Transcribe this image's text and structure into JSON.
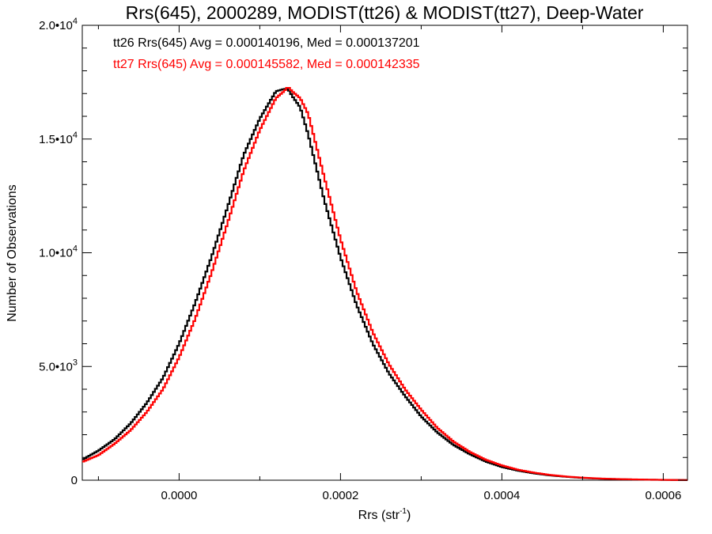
{
  "chart_data": {
    "type": "line",
    "title": "Rrs(645), 2000289, MODIST(tt26) & MODIST(tt27), Deep-Water",
    "xlabel": "Rrs (str",
    "xlabel_sup": "-1",
    "xlabel_end": ")",
    "ylabel": "Number of Observations",
    "xlim": [
      -0.00012,
      0.00063
    ],
    "ylim": [
      0,
      20000
    ],
    "grid": false,
    "x_ticks": [
      {
        "value": 0.0,
        "label": "0.0000"
      },
      {
        "value": 0.0002,
        "label": "0.0002"
      },
      {
        "value": 0.0004,
        "label": "0.0004"
      },
      {
        "value": 0.0006,
        "label": "0.0006"
      }
    ],
    "y_ticks": [
      {
        "value": 0,
        "base": "0",
        "exp": ""
      },
      {
        "value": 5000,
        "base": "5.0•10",
        "exp": "3"
      },
      {
        "value": 10000,
        "base": "1.0•10",
        "exp": "4"
      },
      {
        "value": 15000,
        "base": "1.5•10",
        "exp": "4"
      },
      {
        "value": 20000,
        "base": "2.0•10",
        "exp": "4"
      }
    ],
    "annotations": [
      {
        "text": "tt26 Rrs(645) Avg = 0.000140196, Med = 0.000137201",
        "color": "#000000"
      },
      {
        "text": "tt27 Rrs(645) Avg = 0.000145582, Med = 0.000142335",
        "color": "#ff0000"
      }
    ],
    "series": [
      {
        "color": "#000000",
        "x": [
          -0.00012,
          -0.0001,
          -8e-05,
          -6e-05,
          -4e-05,
          -2e-05,
          0.0,
          2e-05,
          4e-05,
          6e-05,
          8e-05,
          0.0001,
          0.00011,
          0.00012,
          0.00013,
          0.000135,
          0.00014,
          0.00015,
          0.00016,
          0.00018,
          0.0002,
          0.00022,
          0.00024,
          0.00026,
          0.00028,
          0.0003,
          0.00032,
          0.00034,
          0.00036,
          0.00038,
          0.0004,
          0.00042,
          0.00044,
          0.00046,
          0.00048,
          0.0005,
          0.00052,
          0.00055,
          0.00058,
          0.00061,
          0.00063
        ],
        "y": [
          900,
          1300,
          1800,
          2500,
          3400,
          4500,
          6000,
          7800,
          9800,
          12000,
          14300,
          15900,
          16500,
          17100,
          17200,
          17200,
          16900,
          16400,
          15200,
          12300,
          9800,
          7700,
          6000,
          4700,
          3700,
          2800,
          2100,
          1550,
          1150,
          820,
          580,
          420,
          300,
          210,
          150,
          100,
          70,
          40,
          20,
          10,
          5
        ]
      },
      {
        "color": "#ff0000",
        "x": [
          -0.00012,
          -0.0001,
          -8e-05,
          -6e-05,
          -4e-05,
          -2e-05,
          0.0,
          2e-05,
          4e-05,
          6e-05,
          8e-05,
          0.0001,
          0.00011,
          0.00012,
          0.00013,
          0.000135,
          0.00014,
          0.00015,
          0.00016,
          0.00018,
          0.0002,
          0.00022,
          0.00024,
          0.00026,
          0.00028,
          0.0003,
          0.00032,
          0.00034,
          0.00036,
          0.00038,
          0.0004,
          0.00042,
          0.00044,
          0.00046,
          0.00048,
          0.0005,
          0.00052,
          0.00055,
          0.00058,
          0.00061,
          0.00063
        ],
        "y": [
          800,
          1100,
          1600,
          2200,
          3000,
          4000,
          5400,
          7100,
          9100,
          11300,
          13600,
          15400,
          16100,
          16800,
          17100,
          17300,
          17100,
          16800,
          16100,
          13300,
          10600,
          8300,
          6500,
          5100,
          4000,
          3100,
          2300,
          1700,
          1250,
          900,
          650,
          460,
          330,
          230,
          160,
          110,
          75,
          45,
          25,
          12,
          6
        ]
      }
    ]
  }
}
